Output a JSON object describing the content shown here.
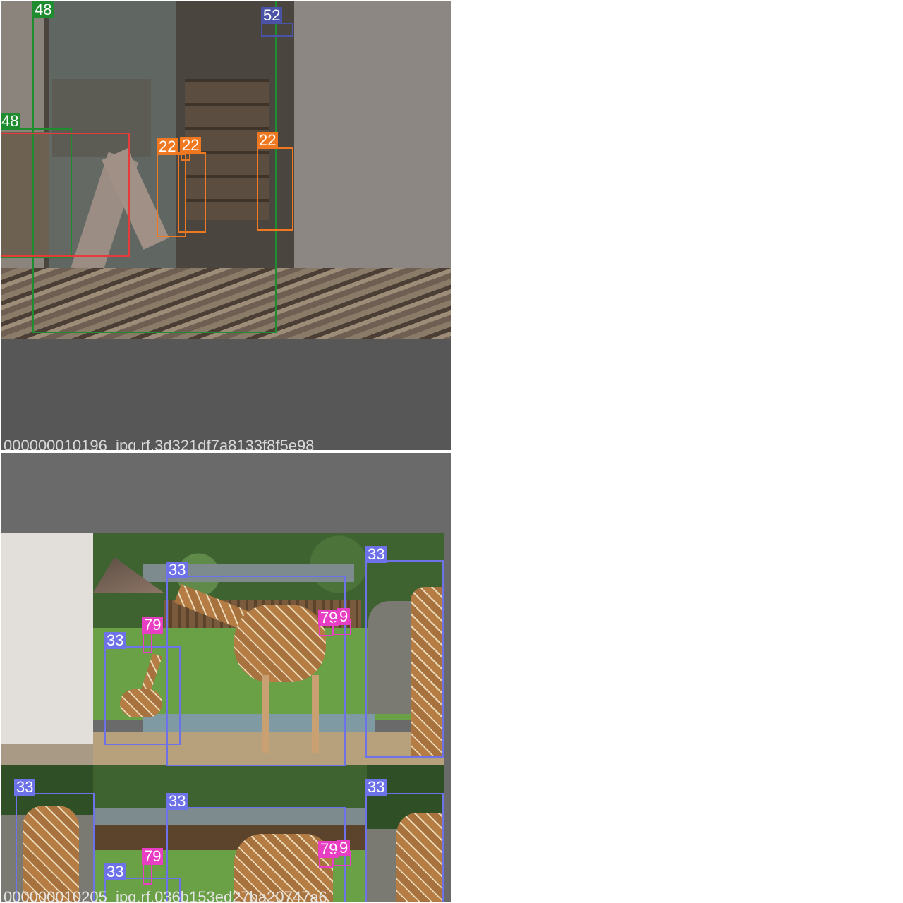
{
  "colors": {
    "person": "#1e8c2f",
    "chair": "#f07820",
    "couch": "#e53b3b",
    "remote": "#4a53a6",
    "giraffe": "#6e72e8",
    "zebra": "#e83ec4"
  },
  "tiles": [
    {
      "filename": "000000010196_jpg.rf.3d321df7a8133f8f5e98",
      "labels": {
        "person_a": "48",
        "person_b": "48",
        "remote": "52",
        "chair_a": "22",
        "chair_b": "22",
        "chair_c": "22"
      }
    },
    {
      "filename": "000000010205_jpg.rf.036b153ed27ba20747a6",
      "labels": {
        "giraffe_a": "33",
        "giraffe_b": "33",
        "giraffe_c": "33",
        "zebra_a": "79",
        "zebra_b": "79",
        "zebra_c": "9",
        "giraffe_d": "33",
        "giraffe_e": "33",
        "giraffe_f": "33",
        "giraffe_g": "33",
        "zebra_d": "79",
        "zebra_e": "79",
        "zebra_f": "9"
      }
    }
  ]
}
